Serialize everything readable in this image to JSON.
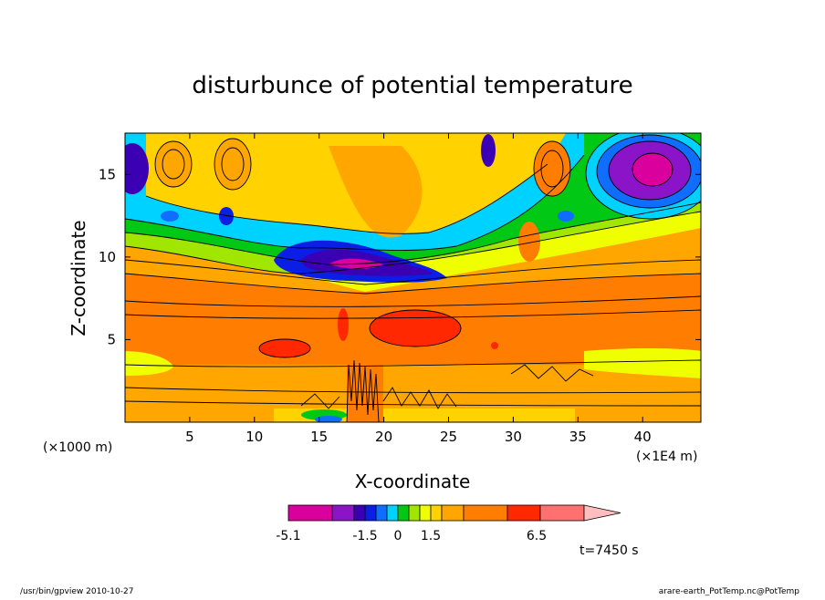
{
  "chart_data": {
    "type": "heatmap",
    "title": "disturbunce of potential temperature",
    "xlabel": "X-coordinate",
    "ylabel": "Z-coordinate",
    "x_unit": "(×1000 m)",
    "x_scale_note": "(×1E4 m)",
    "xlim": [
      0,
      44.5
    ],
    "ylim": [
      0,
      17.5
    ],
    "x_ticks": [
      5,
      10,
      15,
      20,
      25,
      30,
      35,
      40
    ],
    "y_ticks": [
      5,
      10,
      15
    ],
    "colorbar": {
      "colors": [
        "#d9009e",
        "#8c14c8",
        "#3c00b4",
        "#0a1ee6",
        "#0f6eff",
        "#00d2ff",
        "#00c814",
        "#a0e600",
        "#f0ff00",
        "#ffd200",
        "#ffa600",
        "#ff7d00",
        "#ff2800",
        "#ff7070",
        "#ffbebe"
      ],
      "labels": [
        "-5.1",
        "-1.5",
        "0",
        "1.5",
        "6.5"
      ],
      "extend": "max"
    },
    "annotation": "t=7450 s"
  },
  "footer": {
    "left": "/usr/bin/gpview   2010-10-27",
    "right": "arare-earth_PotTemp.nc@PotTemp"
  }
}
